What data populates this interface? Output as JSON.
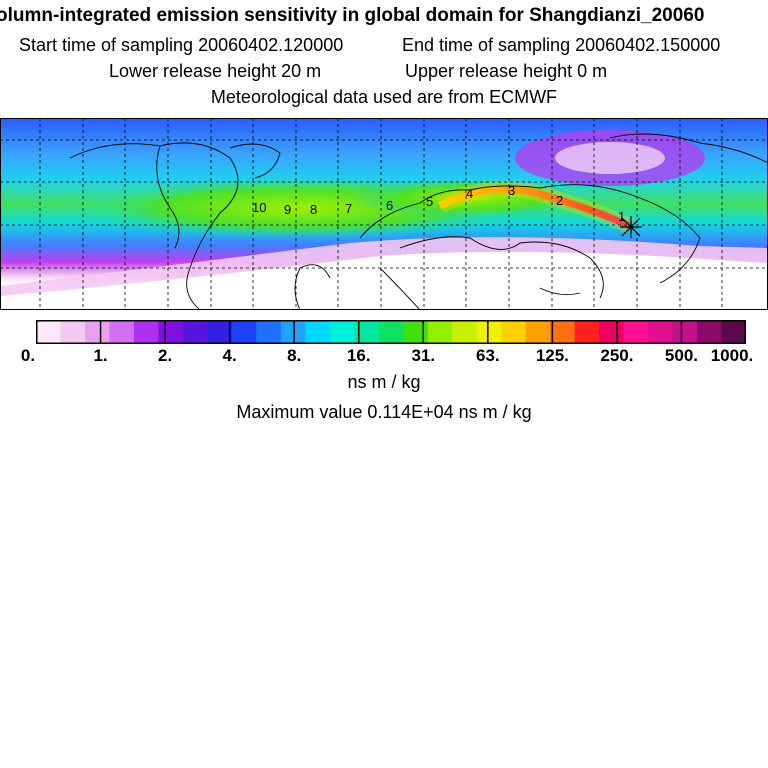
{
  "header": {
    "title": "olumn-integrated emission sensitivity in global domain for Shangdianzi_20060",
    "start_time": "Start time of sampling 20060402.120000",
    "end_time": "End time of sampling 20060402.150000",
    "lower_height": "Lower release height   20 m",
    "upper_height": "Upper release height    0 m",
    "met_data": "Meteorological data used are from ECMWF"
  },
  "map": {
    "markers": [
      "1",
      "2",
      "3",
      "4",
      "5",
      "6",
      "7",
      "8",
      "9",
      "10"
    ],
    "colors": {
      "background_tropics": "#ffffff",
      "high_lat": "#3070ff",
      "plume_core": "#e8202a"
    }
  },
  "colorbar": {
    "tick_labels": [
      "0.",
      "1.",
      "2.",
      "4.",
      "8.",
      "16.",
      "31.",
      "63.",
      "125.",
      "250.",
      "500.",
      "1000."
    ],
    "colors": [
      "#fbe8fb",
      "#f3c8f3",
      "#e9a0ef",
      "#d070f0",
      "#b030f0",
      "#8010e0",
      "#5a14e0",
      "#3020e0",
      "#2040ff",
      "#2070ff",
      "#20a0ff",
      "#00d8ff",
      "#00f0e0",
      "#00e8a0",
      "#10e060",
      "#40e010",
      "#90f000",
      "#c8f000",
      "#f0f000",
      "#ffd000",
      "#ffa000",
      "#ff7010",
      "#ff2020",
      "#f00060",
      "#ff1090",
      "#e01090",
      "#c0108a",
      "#8a0a6a",
      "#5a0a4a"
    ],
    "units": "ns m / kg"
  },
  "footer": {
    "max_value": "Maximum value  0.114E+04 ns m / kg"
  }
}
